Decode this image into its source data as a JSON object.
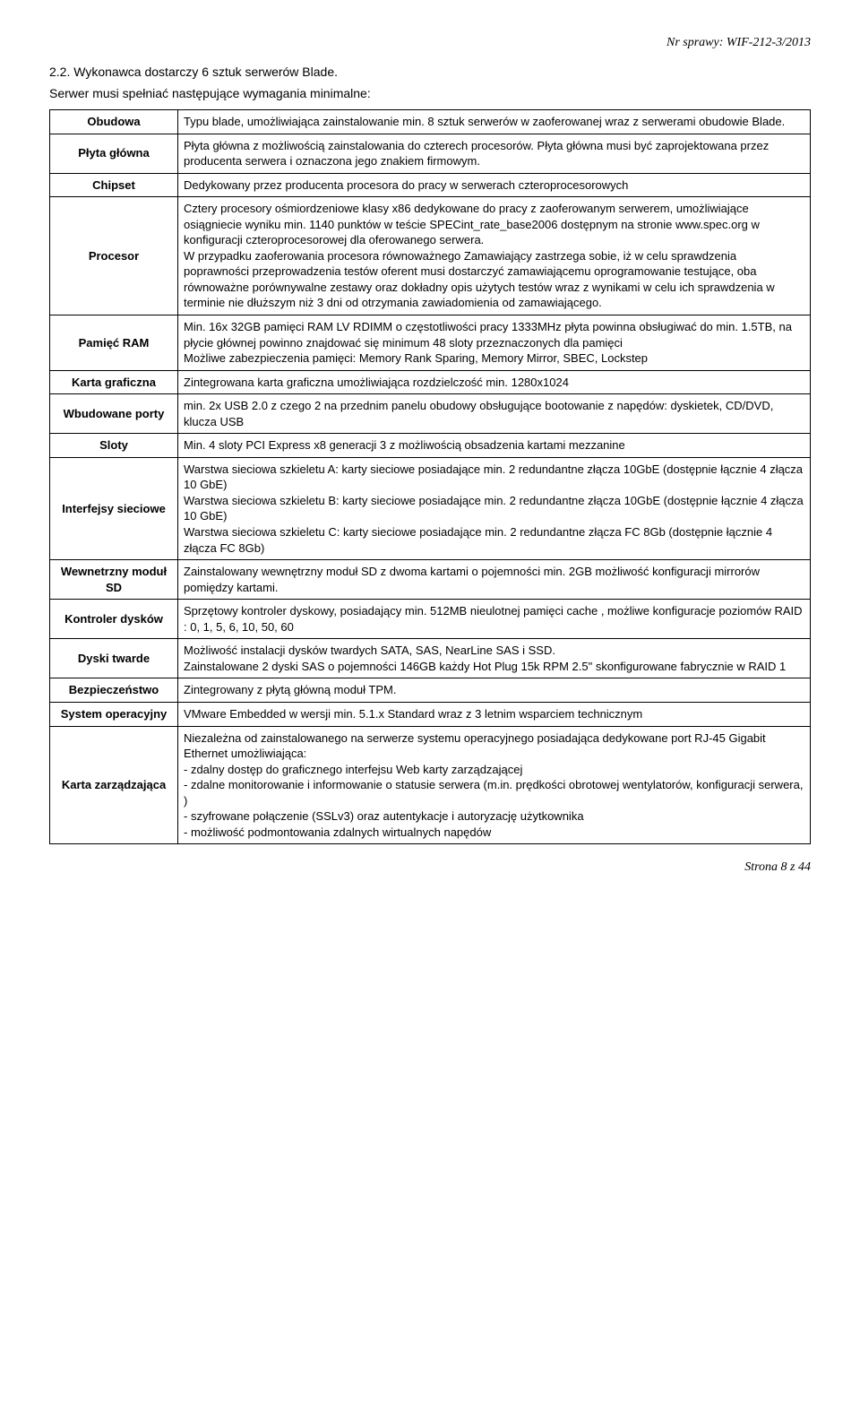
{
  "header": {
    "case_number": "Nr sprawy: WIF-212-3/2013"
  },
  "section": {
    "title": "2.2.   Wykonawca dostarczy 6 sztuk serwerów Blade.",
    "subtitle": "Serwer musi spełniać następujące wymagania minimalne:"
  },
  "rows": [
    {
      "label": "Obudowa",
      "value": "Typu blade, umożliwiająca zainstalowanie min. 8 sztuk serwerów w zaoferowanej wraz z serwerami obudowie Blade."
    },
    {
      "label": "Płyta główna",
      "value": "Płyta główna z możliwością zainstalowania do czterech procesorów. Płyta główna musi być zaprojektowana przez producenta serwera i oznaczona jego znakiem firmowym."
    },
    {
      "label": "Chipset",
      "value": "Dedykowany przez producenta procesora do pracy w serwerach czteroprocesorowych"
    },
    {
      "label": "Procesor",
      "value": "Cztery procesory ośmiordzeniowe  klasy x86 dedykowane do pracy z zaoferowanym serwerem, umożliwiające osiągniecie wyniku min. 1140 punktów w teście SPECint_rate_base2006 dostępnym na stronie www.spec.org w konfiguracji czteroprocesorowej dla oferowanego serwera.\nW przypadku zaoferowania procesora równoważnego Zamawiający zastrzega sobie, iż w celu sprawdzenia poprawności przeprowadzenia testów oferent musi dostarczyć zamawiającemu oprogramowanie testujące, oba równoważne porównywalne zestawy oraz dokładny opis użytych testów wraz z wynikami w celu ich sprawdzenia w terminie nie dłuższym niż 3 dni od otrzymania zawiadomienia od zamawiającego."
    },
    {
      "label": "Pamięć RAM",
      "value": "Min. 16x 32GB pamięci RAM LV RDIMM o częstotliwości pracy 1333MHz płyta powinna obsługiwać do min. 1.5TB, na płycie głównej powinno znajdować się minimum 48 sloty przeznaczonych dla pamięci\nMożliwe zabezpieczenia pamięci: Memory Rank Sparing, Memory Mirror, SBEC, Lockstep"
    },
    {
      "label": "Karta graficzna",
      "value": "Zintegrowana karta graficzna umożliwiająca rozdzielczość min. 1280x1024"
    },
    {
      "label": "Wbudowane porty",
      "value": "min. 2x USB 2.0 z czego 2 na przednim panelu obudowy obsługujące bootowanie z napędów: dyskietek, CD/DVD, klucza USB"
    },
    {
      "label": "Sloty",
      "value": "Min. 4 sloty PCI Express x8 generacji 3 z możliwością obsadzenia kartami mezzanine"
    },
    {
      "label": "Interfejsy sieciowe",
      "value": "Warstwa sieciowa szkieletu A: karty sieciowe posiadające min. 2 redundantne złącza 10GbE (dostępnie łącznie 4 złącza 10 GbE)\nWarstwa sieciowa szkieletu B: karty sieciowe posiadające min. 2 redundantne złącza 10GbE (dostępnie łącznie 4 złącza 10 GbE)\nWarstwa sieciowa szkieletu C: karty sieciowe posiadające min. 2 redundantne złącza FC 8Gb (dostępnie łącznie 4 złącza FC 8Gb)"
    },
    {
      "label": "Wewnetrzny moduł SD",
      "value": "Zainstalowany wewnętrzny moduł SD z dwoma kartami o pojemności min. 2GB możliwość konfiguracji mirrorów pomiędzy kartami."
    },
    {
      "label": "Kontroler dysków",
      "value": "Sprzętowy kontroler dyskowy, posiadający min. 512MB nieulotnej pamięci cache , możliwe konfiguracje poziomów RAID : 0, 1, 5, 6, 10, 50, 60"
    },
    {
      "label": "Dyski twarde",
      "value": "Możliwość instalacji dysków twardych SATA, SAS, NearLine SAS i SSD.\n Zainstalowane 2 dyski SAS o pojemności 146GB każdy Hot Plug 15k RPM 2.5\" skonfigurowane fabrycznie w RAID 1"
    },
    {
      "label": "Bezpieczeństwo",
      "value": "Zintegrowany z płytą główną moduł TPM."
    },
    {
      "label": "System operacyjny",
      "value": "VMware Embedded w wersji min. 5.1.x Standard wraz z 3 letnim wsparciem technicznym"
    },
    {
      "label": "Karta zarządzająca",
      "value": "Niezależna od zainstalowanego na serwerze systemu operacyjnego posiadająca dedykowane port RJ-45 Gigabit Ethernet umożliwiająca:\n- zdalny dostęp do graficznego interfejsu Web karty zarządzającej\n- zdalne monitorowanie i informowanie o statusie serwera (m.in. prędkości obrotowej wentylatorów, konfiguracji serwera, )\n- szyfrowane połączenie (SSLv3) oraz autentykacje i autoryzację użytkownika\n- możliwość podmontowania zdalnych wirtualnych napędów"
    }
  ],
  "footer": {
    "page": "Strona 8 z 44"
  }
}
